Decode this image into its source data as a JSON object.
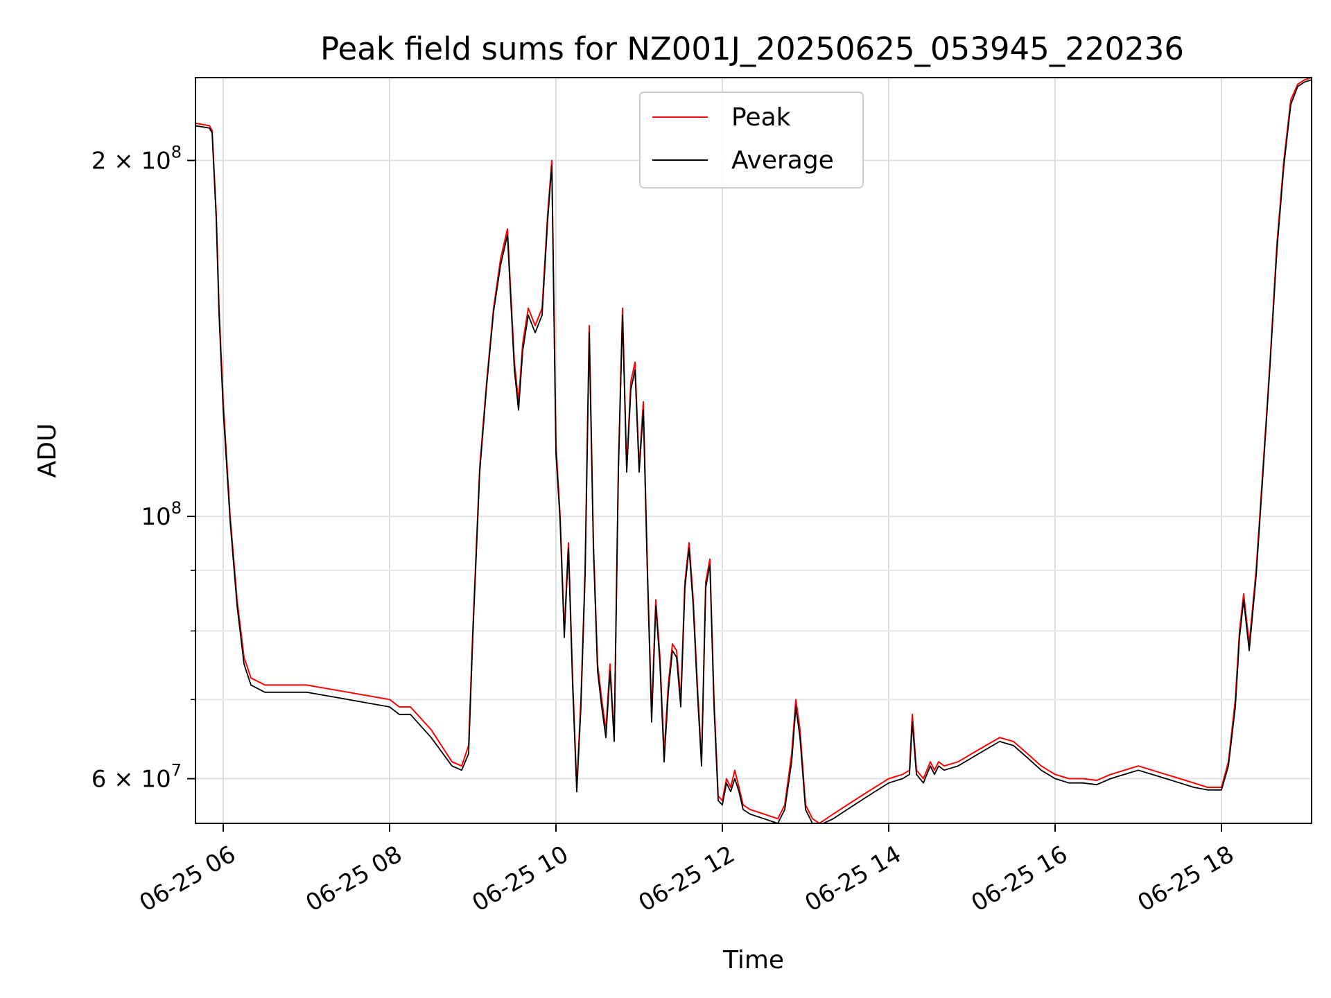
{
  "chart_data": {
    "type": "line",
    "title": "Peak field sums for NZ001J_20250625_053945_220236",
    "xlabel": "Time",
    "ylabel": "ADU",
    "x_scale": "time",
    "y_scale": "log",
    "xlim": [
      "2025-06-25 05:40",
      "2025-06-25 19:05"
    ],
    "ylim": [
      55000000,
      235000000
    ],
    "x_ticks": [
      {
        "value": "2025-06-25 06:00",
        "label": "06-25 06"
      },
      {
        "value": "2025-06-25 08:00",
        "label": "06-25 08"
      },
      {
        "value": "2025-06-25 10:00",
        "label": "06-25 10"
      },
      {
        "value": "2025-06-25 12:00",
        "label": "06-25 12"
      },
      {
        "value": "2025-06-25 14:00",
        "label": "06-25 14"
      },
      {
        "value": "2025-06-25 16:00",
        "label": "06-25 16"
      },
      {
        "value": "2025-06-25 18:00",
        "label": "06-25 18"
      }
    ],
    "y_ticks_major": [
      {
        "value": 60000000,
        "label_base": "6 × 10",
        "label_exp": "7"
      },
      {
        "value": 100000000,
        "label_base": "10",
        "label_exp": "8"
      },
      {
        "value": 200000000,
        "label_base": "2 × 10",
        "label_exp": "8"
      }
    ],
    "y_ticks_minor": [
      70000000,
      80000000,
      90000000
    ],
    "grid": true,
    "legend": {
      "position": "top-center"
    },
    "series": [
      {
        "name": "Peak",
        "color": "#ff0000",
        "x": [
          "05:40",
          "05:50",
          "05:52",
          "05:55",
          "05:57",
          "06:00",
          "06:05",
          "06:10",
          "06:15",
          "06:20",
          "06:30",
          "07:00",
          "07:30",
          "08:00",
          "08:07",
          "08:15",
          "08:30",
          "08:45",
          "08:52",
          "08:57",
          "09:00",
          "09:05",
          "09:10",
          "09:15",
          "09:20",
          "09:25",
          "09:30",
          "09:33",
          "09:36",
          "09:40",
          "09:45",
          "09:50",
          "09:54",
          "09:57",
          "10:00",
          "10:03",
          "10:06",
          "10:09",
          "10:12",
          "10:15",
          "10:18",
          "10:21",
          "10:24",
          "10:27",
          "10:30",
          "10:33",
          "10:36",
          "10:39",
          "10:42",
          "10:45",
          "10:48",
          "10:51",
          "10:54",
          "10:57",
          "11:00",
          "11:03",
          "11:06",
          "11:09",
          "11:12",
          "11:15",
          "11:18",
          "11:21",
          "11:24",
          "11:27",
          "11:30",
          "11:33",
          "11:36",
          "11:39",
          "11:42",
          "11:45",
          "11:48",
          "11:51",
          "11:54",
          "11:57",
          "12:00",
          "12:03",
          "12:06",
          "12:09",
          "12:12",
          "12:15",
          "12:20",
          "12:30",
          "12:40",
          "12:45",
          "12:50",
          "12:53",
          "12:56",
          "13:00",
          "13:05",
          "13:10",
          "13:20",
          "13:30",
          "13:40",
          "13:50",
          "14:00",
          "14:10",
          "14:15",
          "14:17",
          "14:20",
          "14:25",
          "14:30",
          "14:33",
          "14:36",
          "14:40",
          "14:50",
          "15:00",
          "15:10",
          "15:20",
          "15:30",
          "15:40",
          "15:50",
          "16:00",
          "16:10",
          "16:20",
          "16:30",
          "16:40",
          "16:50",
          "17:00",
          "17:10",
          "17:20",
          "17:30",
          "17:40",
          "17:50",
          "18:00",
          "18:05",
          "18:10",
          "18:13",
          "18:16",
          "18:20",
          "18:25",
          "18:30",
          "18:35",
          "18:40",
          "18:45",
          "18:50",
          "18:55",
          "19:00",
          "19:05"
        ],
        "y": [
          215000000,
          214000000,
          212000000,
          180000000,
          150000000,
          125000000,
          100000000,
          85000000,
          76000000,
          73000000,
          72000000,
          72000000,
          71000000,
          70000000,
          69000000,
          69000000,
          66000000,
          62000000,
          61500000,
          64000000,
          80000000,
          110000000,
          130000000,
          150000000,
          165000000,
          175000000,
          135000000,
          125000000,
          140000000,
          150000000,
          145000000,
          150000000,
          180000000,
          200000000,
          115000000,
          100000000,
          80000000,
          95000000,
          73000000,
          59000000,
          70000000,
          90000000,
          145000000,
          95000000,
          75000000,
          70000000,
          66000000,
          75000000,
          65000000,
          110000000,
          150000000,
          110000000,
          130000000,
          135000000,
          110000000,
          125000000,
          90000000,
          68000000,
          85000000,
          76000000,
          63000000,
          72000000,
          78000000,
          77000000,
          70000000,
          88000000,
          95000000,
          85000000,
          72000000,
          62000000,
          88000000,
          92000000,
          70000000,
          58000000,
          57500000,
          60000000,
          59000000,
          61000000,
          59000000,
          57000000,
          56500000,
          56000000,
          55500000,
          57000000,
          63000000,
          70000000,
          66000000,
          57000000,
          55500000,
          55000000,
          56000000,
          57000000,
          58000000,
          59000000,
          60000000,
          60500000,
          61000000,
          68000000,
          61000000,
          60000000,
          62000000,
          61000000,
          62000000,
          61500000,
          62000000,
          63000000,
          64000000,
          65000000,
          64500000,
          63000000,
          61500000,
          60500000,
          60000000,
          60000000,
          59800000,
          60500000,
          61000000,
          61500000,
          61000000,
          60500000,
          60000000,
          59500000,
          59000000,
          59000000,
          62000000,
          70000000,
          80000000,
          86000000,
          78000000,
          90000000,
          110000000,
          135000000,
          170000000,
          200000000,
          225000000,
          232000000,
          234000000,
          235000000
        ]
      },
      {
        "name": "Average",
        "color": "#000000",
        "x": [
          "05:40",
          "05:50",
          "05:52",
          "05:55",
          "05:57",
          "06:00",
          "06:05",
          "06:10",
          "06:15",
          "06:20",
          "06:30",
          "07:00",
          "07:30",
          "08:00",
          "08:07",
          "08:15",
          "08:30",
          "08:45",
          "08:52",
          "08:57",
          "09:00",
          "09:05",
          "09:10",
          "09:15",
          "09:20",
          "09:25",
          "09:30",
          "09:33",
          "09:36",
          "09:40",
          "09:45",
          "09:50",
          "09:54",
          "09:57",
          "10:00",
          "10:03",
          "10:06",
          "10:09",
          "10:12",
          "10:15",
          "10:18",
          "10:21",
          "10:24",
          "10:27",
          "10:30",
          "10:33",
          "10:36",
          "10:39",
          "10:42",
          "10:45",
          "10:48",
          "10:51",
          "10:54",
          "10:57",
          "11:00",
          "11:03",
          "11:06",
          "11:09",
          "11:12",
          "11:15",
          "11:18",
          "11:21",
          "11:24",
          "11:27",
          "11:30",
          "11:33",
          "11:36",
          "11:39",
          "11:42",
          "11:45",
          "11:48",
          "11:51",
          "11:54",
          "11:57",
          "12:00",
          "12:03",
          "12:06",
          "12:09",
          "12:12",
          "12:15",
          "12:20",
          "12:30",
          "12:40",
          "12:45",
          "12:50",
          "12:53",
          "12:56",
          "13:00",
          "13:05",
          "13:10",
          "13:20",
          "13:30",
          "13:40",
          "13:50",
          "14:00",
          "14:10",
          "14:15",
          "14:17",
          "14:20",
          "14:25",
          "14:30",
          "14:33",
          "14:36",
          "14:40",
          "14:50",
          "15:00",
          "15:10",
          "15:20",
          "15:30",
          "15:40",
          "15:50",
          "16:00",
          "16:10",
          "16:20",
          "16:30",
          "16:40",
          "16:50",
          "17:00",
          "17:10",
          "17:20",
          "17:30",
          "17:40",
          "17:50",
          "18:00",
          "18:05",
          "18:10",
          "18:13",
          "18:16",
          "18:20",
          "18:25",
          "18:30",
          "18:35",
          "18:40",
          "18:45",
          "18:50",
          "18:55",
          "19:00",
          "19:05"
        ],
        "y": [
          214000000,
          213000000,
          211000000,
          178000000,
          148000000,
          123000000,
          99000000,
          84000000,
          75000000,
          72000000,
          71000000,
          71000000,
          70000000,
          69000000,
          68000000,
          68000000,
          65000000,
          61500000,
          61000000,
          63000000,
          79000000,
          109000000,
          129000000,
          149000000,
          163000000,
          173000000,
          133000000,
          123000000,
          138000000,
          148000000,
          143000000,
          148000000,
          178000000,
          198000000,
          113000000,
          99000000,
          79000000,
          94000000,
          72000000,
          58500000,
          69000000,
          89000000,
          143000000,
          94000000,
          74000000,
          69000000,
          65000000,
          74000000,
          64500000,
          109000000,
          148000000,
          109000000,
          128000000,
          133000000,
          109000000,
          123000000,
          89000000,
          67000000,
          84000000,
          75000000,
          62000000,
          71000000,
          77000000,
          76000000,
          69000000,
          87000000,
          94000000,
          84000000,
          71000000,
          61500000,
          87000000,
          91000000,
          69000000,
          57500000,
          57000000,
          59500000,
          58500000,
          60000000,
          58500000,
          56500000,
          56000000,
          55500000,
          55000000,
          56500000,
          62000000,
          69000000,
          65000000,
          56500000,
          55000000,
          54800000,
          55500000,
          56500000,
          57500000,
          58500000,
          59500000,
          60000000,
          60500000,
          67000000,
          60500000,
          59500000,
          61500000,
          60500000,
          61500000,
          61000000,
          61500000,
          62500000,
          63500000,
          64500000,
          64000000,
          62500000,
          61000000,
          60000000,
          59500000,
          59500000,
          59300000,
          60000000,
          60500000,
          61000000,
          60500000,
          60000000,
          59500000,
          59000000,
          58700000,
          58700000,
          61500000,
          69000000,
          79000000,
          85000000,
          77000000,
          89000000,
          109000000,
          134000000,
          168000000,
          198000000,
          223000000,
          231000000,
          233000000,
          234000000
        ]
      }
    ]
  }
}
